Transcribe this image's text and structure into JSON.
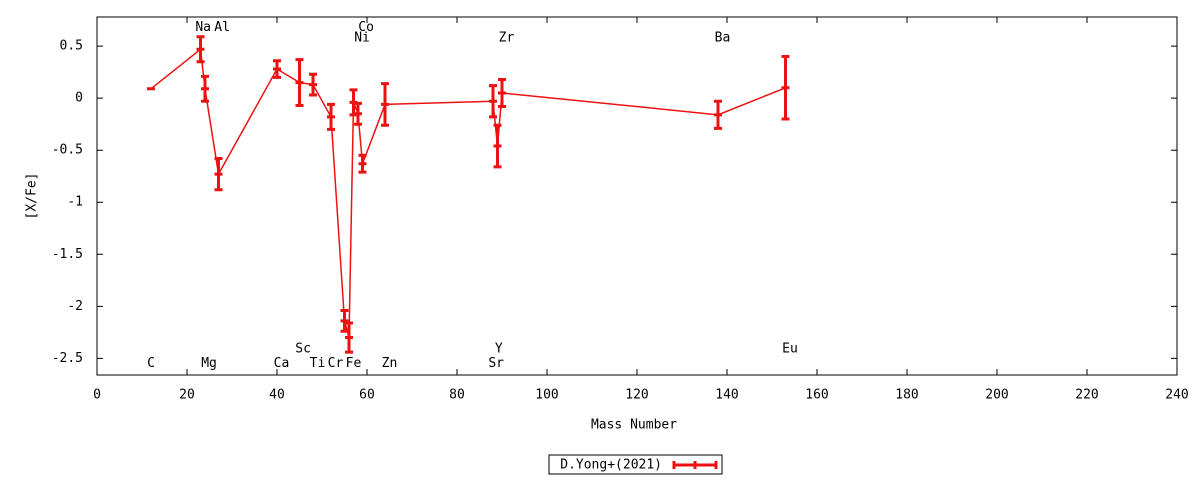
{
  "chart_data": {
    "type": "errorbar-line",
    "xlabel": "Mass Number",
    "ylabel": "[X/Fe]",
    "xlim": [
      0,
      240
    ],
    "ylim": [
      -2.66,
      0.78
    ],
    "xticks": [
      0,
      20,
      40,
      60,
      80,
      100,
      120,
      140,
      160,
      180,
      200,
      220,
      240
    ],
    "yticks": [
      0.5,
      0,
      -0.5,
      -1,
      -1.5,
      -2,
      -2.5
    ],
    "legend": "bottom",
    "series": [
      {
        "name": "D.Yong+(2021)",
        "color": "#ee1111",
        "x": [
          12,
          23,
          24,
          27,
          40,
          45,
          48,
          52,
          55,
          56,
          57,
          58,
          59,
          64,
          88,
          89,
          90,
          138,
          153
        ],
        "values": [
          0.09,
          0.47,
          0.09,
          -0.73,
          0.28,
          0.15,
          0.13,
          -0.18,
          -2.14,
          -2.3,
          -0.04,
          -0.15,
          -0.63,
          -0.06,
          -0.03,
          -0.46,
          0.05,
          -0.16,
          0.1
        ],
        "errors": [
          0,
          0.12,
          0.12,
          0.15,
          0.08,
          0.22,
          0.1,
          0.12,
          0.1,
          0.14,
          0.12,
          0.1,
          0.08,
          0.2,
          0.15,
          0.2,
          0.13,
          0.13,
          0.3
        ]
      }
    ],
    "annotations": [
      {
        "text": "C",
        "x": 12,
        "y": -2.55
      },
      {
        "text": "Na",
        "x": 23.6,
        "y": 0.68
      },
      {
        "text": "Mg",
        "x": 24.9,
        "y": -2.55
      },
      {
        "text": "Al",
        "x": 27.8,
        "y": 0.68
      },
      {
        "text": "Ca",
        "x": 41,
        "y": -2.55
      },
      {
        "text": "Sc",
        "x": 45.8,
        "y": -2.41
      },
      {
        "text": "Ti",
        "x": 49,
        "y": -2.55
      },
      {
        "text": "Cr",
        "x": 53,
        "y": -2.55
      },
      {
        "text": "Fe",
        "x": 57,
        "y": -2.55
      },
      {
        "text": "Co",
        "x": 59.8,
        "y": 0.68
      },
      {
        "text": "Ni",
        "x": 58.9,
        "y": 0.58
      },
      {
        "text": "Zn",
        "x": 65,
        "y": -2.55
      },
      {
        "text": "Y",
        "x": 89.3,
        "y": -2.41
      },
      {
        "text": "Sr",
        "x": 88.7,
        "y": -2.55
      },
      {
        "text": "Zr",
        "x": 91,
        "y": 0.58
      },
      {
        "text": "Ba",
        "x": 139,
        "y": 0.58
      },
      {
        "text": "Eu",
        "x": 154,
        "y": -2.41
      }
    ]
  }
}
